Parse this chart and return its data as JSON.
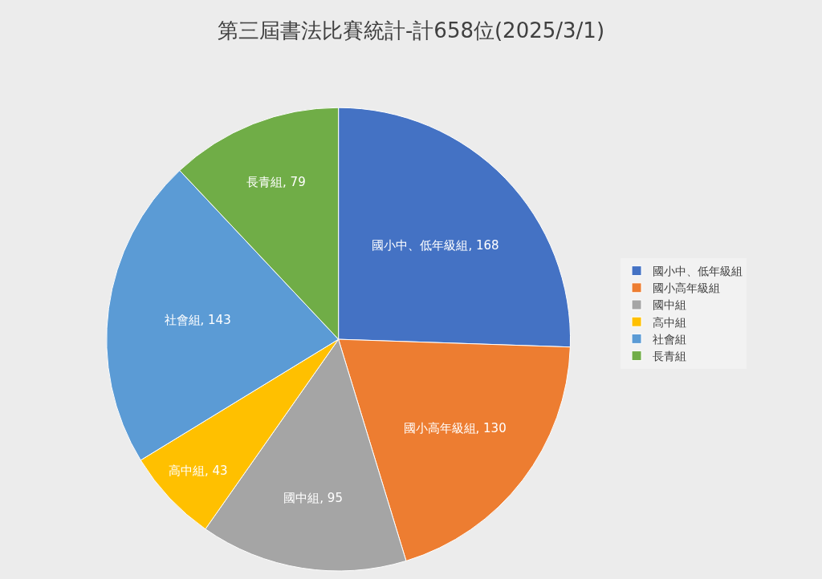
{
  "chart_data": {
    "type": "pie",
    "title": "第三屆書法比賽統計-計658位(2025/3/1)",
    "categories": [
      "國小中、低年級組",
      "國小高年級組",
      "國中組",
      "高中組",
      "社會組",
      "長青組"
    ],
    "values": [
      168,
      130,
      95,
      43,
      143,
      79
    ],
    "colors": [
      "#4472c4",
      "#ed7d31",
      "#a5a5a5",
      "#ffc000",
      "#5b9bd5",
      "#70ad47"
    ],
    "value_labels": [
      "國小中、低年級組, 168",
      "國小高年級組, 130",
      "國中組, 95",
      "高中組, 43",
      "社會組, 143",
      "長青組, 79"
    ],
    "legend": "right"
  }
}
